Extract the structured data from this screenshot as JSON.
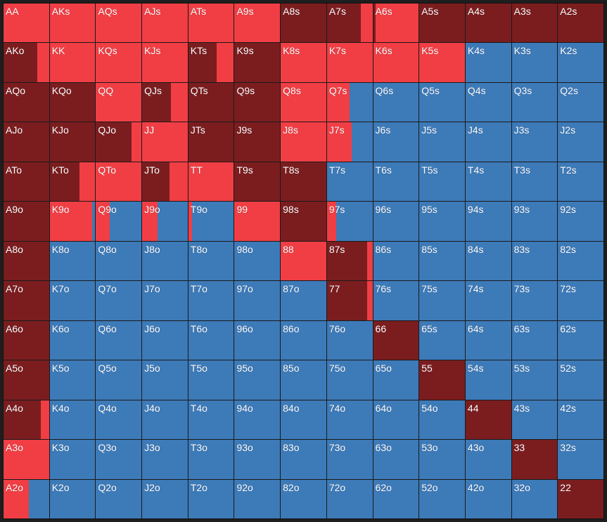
{
  "colors": {
    "raise": "#7b1d1f",
    "call": "#f03e44",
    "fold": "#3d7ab8"
  },
  "legend_order": [
    "raise",
    "call",
    "fold"
  ],
  "rows": [
    [
      [
        "AA",
        0,
        1
      ],
      [
        "AKs",
        0,
        1
      ],
      [
        "AQs",
        0,
        1
      ],
      [
        "AJs",
        0,
        1
      ],
      [
        "ATs",
        0,
        1
      ],
      [
        "A9s",
        0,
        1
      ],
      [
        "A8s",
        1,
        0
      ],
      [
        "A7s",
        0.74,
        0.26
      ],
      [
        "A6s",
        0.05,
        0.95
      ],
      [
        "A5s",
        1,
        0
      ],
      [
        "A4s",
        1,
        0
      ],
      [
        "A3s",
        1,
        0
      ],
      [
        "A2s",
        1,
        0
      ]
    ],
    [
      [
        "AKo",
        0.74,
        0.26
      ],
      [
        "KK",
        0,
        1
      ],
      [
        "KQs",
        0,
        1
      ],
      [
        "KJs",
        0,
        1
      ],
      [
        "KTs",
        0.62,
        0.38
      ],
      [
        "K9s",
        1,
        0
      ],
      [
        "K8s",
        0,
        1
      ],
      [
        "K7s",
        0,
        1
      ],
      [
        "K6s",
        0,
        1
      ],
      [
        "K5s",
        0,
        1
      ],
      [
        "K4s",
        0,
        0
      ],
      [
        "K3s",
        0,
        0
      ],
      [
        "K2s",
        0,
        0
      ]
    ],
    [
      [
        "AQo",
        1,
        0
      ],
      [
        "KQo",
        1,
        0
      ],
      [
        "QQ",
        0,
        1
      ],
      [
        "QJs",
        0.64,
        0.36
      ],
      [
        "QTs",
        1,
        0
      ],
      [
        "Q9s",
        1,
        0
      ],
      [
        "Q8s",
        0,
        1
      ],
      [
        "Q7s",
        0,
        0.5
      ],
      [
        "Q6s",
        0,
        0
      ],
      [
        "Q5s",
        0,
        0
      ],
      [
        "Q4s",
        0,
        0
      ],
      [
        "Q3s",
        0,
        0
      ],
      [
        "Q2s",
        0,
        0
      ]
    ],
    [
      [
        "AJo",
        1,
        0
      ],
      [
        "KJo",
        1,
        0
      ],
      [
        "QJo",
        0.78,
        0.22
      ],
      [
        "JJ",
        0,
        1
      ],
      [
        "JTs",
        1,
        0
      ],
      [
        "J9s",
        1,
        0
      ],
      [
        "J8s",
        0,
        1
      ],
      [
        "J7s",
        0,
        0.54
      ],
      [
        "J6s",
        0,
        0
      ],
      [
        "J5s",
        0,
        0
      ],
      [
        "J4s",
        0,
        0
      ],
      [
        "J3s",
        0,
        0
      ],
      [
        "J2s",
        0,
        0
      ]
    ],
    [
      [
        "ATo",
        1,
        0
      ],
      [
        "KTo",
        0.66,
        0.34
      ],
      [
        "QTo",
        0,
        1
      ],
      [
        "JTo",
        0.6,
        0.4
      ],
      [
        "TT",
        0,
        1
      ],
      [
        "T9s",
        1,
        0
      ],
      [
        "T8s",
        1,
        0
      ],
      [
        "T7s",
        0,
        0
      ],
      [
        "T6s",
        0,
        0
      ],
      [
        "T5s",
        0,
        0
      ],
      [
        "T4s",
        0,
        0
      ],
      [
        "T3s",
        0,
        0
      ],
      [
        "T2s",
        0,
        0
      ]
    ],
    [
      [
        "A9o",
        1,
        0
      ],
      [
        "K9o",
        0,
        0.93
      ],
      [
        "Q9o",
        0,
        0.3
      ],
      [
        "J9o",
        0,
        0.34
      ],
      [
        "T9o",
        0,
        0.08
      ],
      [
        "99",
        0,
        1
      ],
      [
        "98s",
        1,
        0
      ],
      [
        "97s",
        0,
        0.2
      ],
      [
        "96s",
        0,
        0
      ],
      [
        "95s",
        0,
        0
      ],
      [
        "94s",
        0,
        0
      ],
      [
        "93s",
        0,
        0
      ],
      [
        "92s",
        0,
        0
      ]
    ],
    [
      [
        "A8o",
        1,
        0
      ],
      [
        "K8o",
        0,
        0
      ],
      [
        "Q8o",
        0,
        0
      ],
      [
        "J8o",
        0,
        0
      ],
      [
        "T8o",
        0,
        0
      ],
      [
        "98o",
        0,
        0
      ],
      [
        "88",
        0,
        1
      ],
      [
        "87s",
        0.88,
        0.12
      ],
      [
        "86s",
        0,
        0
      ],
      [
        "85s",
        0,
        0
      ],
      [
        "84s",
        0,
        0
      ],
      [
        "83s",
        0,
        0
      ],
      [
        "82s",
        0,
        0
      ]
    ],
    [
      [
        "A7o",
        1,
        0
      ],
      [
        "K7o",
        0,
        0
      ],
      [
        "Q7o",
        0,
        0
      ],
      [
        "J7o",
        0,
        0
      ],
      [
        "T7o",
        0,
        0
      ],
      [
        "97o",
        0,
        0
      ],
      [
        "87o",
        0,
        0
      ],
      [
        "77",
        0.88,
        0.12
      ],
      [
        "76s",
        0,
        0
      ],
      [
        "75s",
        0,
        0
      ],
      [
        "74s",
        0,
        0
      ],
      [
        "73s",
        0,
        0
      ],
      [
        "72s",
        0,
        0
      ]
    ],
    [
      [
        "A6o",
        1,
        0
      ],
      [
        "K6o",
        0,
        0
      ],
      [
        "Q6o",
        0,
        0
      ],
      [
        "J6o",
        0,
        0
      ],
      [
        "T6o",
        0,
        0
      ],
      [
        "96o",
        0,
        0
      ],
      [
        "86o",
        0,
        0
      ],
      [
        "76o",
        0,
        0
      ],
      [
        "66",
        1,
        0
      ],
      [
        "65s",
        0,
        0
      ],
      [
        "64s",
        0,
        0
      ],
      [
        "63s",
        0,
        0
      ],
      [
        "62s",
        0,
        0
      ]
    ],
    [
      [
        "A5o",
        1,
        0
      ],
      [
        "K5o",
        0,
        0
      ],
      [
        "Q5o",
        0,
        0
      ],
      [
        "J5o",
        0,
        0
      ],
      [
        "T5o",
        0,
        0
      ],
      [
        "95o",
        0,
        0
      ],
      [
        "85o",
        0,
        0
      ],
      [
        "75o",
        0,
        0
      ],
      [
        "65o",
        0,
        0
      ],
      [
        "55",
        1,
        0
      ],
      [
        "54s",
        0,
        0
      ],
      [
        "53s",
        0,
        0
      ],
      [
        "52s",
        0,
        0
      ]
    ],
    [
      [
        "A4o",
        0.82,
        0.18
      ],
      [
        "K4o",
        0,
        0
      ],
      [
        "Q4o",
        0,
        0
      ],
      [
        "J4o",
        0,
        0
      ],
      [
        "T4o",
        0,
        0
      ],
      [
        "94o",
        0,
        0
      ],
      [
        "84o",
        0,
        0
      ],
      [
        "74o",
        0,
        0
      ],
      [
        "64o",
        0,
        0
      ],
      [
        "54o",
        0,
        0
      ],
      [
        "44",
        1,
        0
      ],
      [
        "43s",
        0,
        0
      ],
      [
        "42s",
        0,
        0
      ]
    ],
    [
      [
        "A3o",
        0,
        1
      ],
      [
        "K3o",
        0,
        0
      ],
      [
        "Q3o",
        0,
        0
      ],
      [
        "J3o",
        0,
        0
      ],
      [
        "T3o",
        0,
        0
      ],
      [
        "93o",
        0,
        0
      ],
      [
        "83o",
        0,
        0
      ],
      [
        "73o",
        0,
        0
      ],
      [
        "63o",
        0,
        0
      ],
      [
        "53o",
        0,
        0
      ],
      [
        "43o",
        0,
        0
      ],
      [
        "33",
        1,
        0
      ],
      [
        "32s",
        0,
        0
      ]
    ],
    [
      [
        "A2o",
        0,
        0.56
      ],
      [
        "K2o",
        0,
        0
      ],
      [
        "Q2o",
        0,
        0
      ],
      [
        "J2o",
        0,
        0
      ],
      [
        "T2o",
        0,
        0
      ],
      [
        "92o",
        0,
        0
      ],
      [
        "82o",
        0,
        0
      ],
      [
        "72o",
        0,
        0
      ],
      [
        "62o",
        0,
        0
      ],
      [
        "52o",
        0,
        0
      ],
      [
        "42o",
        0,
        0
      ],
      [
        "32o",
        0,
        0
      ],
      [
        "22",
        1,
        0
      ]
    ]
  ]
}
